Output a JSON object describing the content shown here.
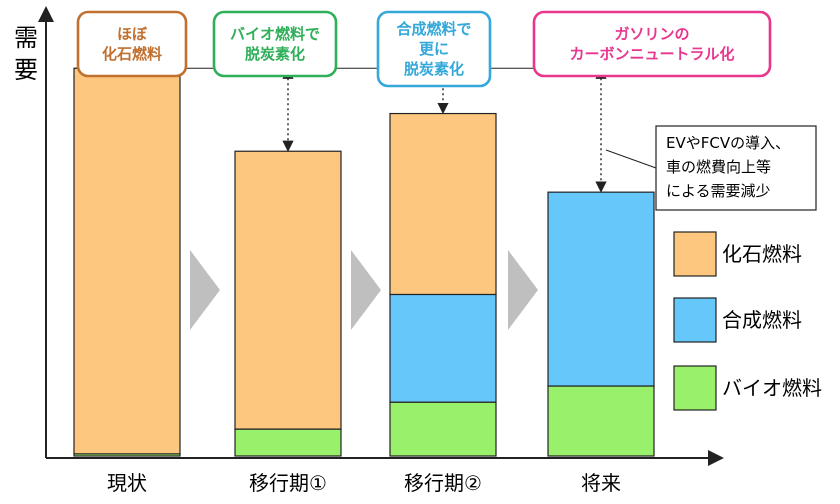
{
  "chart_data": {
    "type": "bar",
    "stacked": true,
    "ylabel": "需要",
    "categories": [
      "現状",
      "移行期①",
      "移行期②",
      "将来"
    ],
    "series": [
      {
        "name": "バイオ燃料",
        "color": "#99F06A",
        "values": [
          2,
          25,
          50,
          65
        ]
      },
      {
        "name": "合成燃料",
        "color": "#66C8FA",
        "values": [
          0,
          0,
          100,
          180
        ]
      },
      {
        "name": "化石燃料",
        "color": "#FDC77F",
        "values": [
          358,
          258,
          168,
          0
        ]
      }
    ],
    "reference_level": 360,
    "ylim": [
      0,
      390
    ],
    "stage_boxes": [
      {
        "lines": [
          "ほぼ",
          "化石燃料"
        ],
        "color": "#C0702F"
      },
      {
        "lines": [
          "バイオ燃料で",
          "脱炭素化"
        ],
        "color": "#2EAF58"
      },
      {
        "lines": [
          "合成燃料で",
          "更に",
          "脱炭素化"
        ],
        "color": "#33A8D9"
      },
      {
        "lines": [
          "ガソリンの",
          "カーボンニュートラル化"
        ],
        "color": "#E8368F"
      }
    ],
    "annotation": {
      "lines": [
        "EVやFCVの導入、",
        "車の燃費向上等",
        "による需要減少"
      ]
    },
    "legend_order": [
      "化石燃料",
      "合成燃料",
      "バイオ燃料"
    ]
  }
}
